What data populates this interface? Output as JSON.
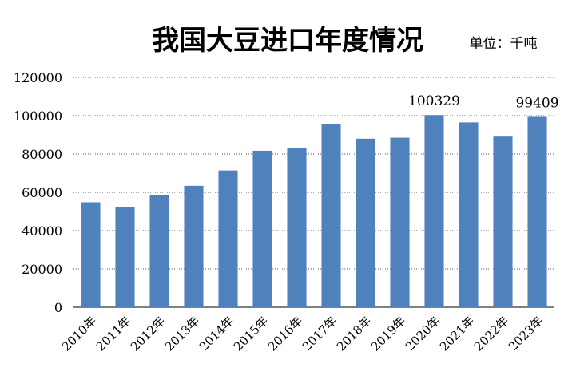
{
  "chart_data": {
    "type": "bar",
    "title": "我国大豆进口年度情况",
    "unit_label": "单位：千吨",
    "categories": [
      "2010年",
      "2011年",
      "2012年",
      "2013年",
      "2014年",
      "2015年",
      "2016年",
      "2017年",
      "2018年",
      "2019年",
      "2020年",
      "2021年",
      "2022年",
      "2023年"
    ],
    "values": [
      54800,
      52400,
      58400,
      63400,
      71400,
      81700,
      83200,
      95500,
      88000,
      88500,
      100329,
      96500,
      89100,
      99409
    ],
    "data_labels": [
      {
        "index": 10,
        "text": "100329"
      },
      {
        "index": 13,
        "text": "99409"
      }
    ],
    "ylim": [
      0,
      120000
    ],
    "yticks": [
      0,
      20000,
      40000,
      60000,
      80000,
      100000,
      120000
    ],
    "bar_color": "#4f81bd",
    "grid": true
  }
}
